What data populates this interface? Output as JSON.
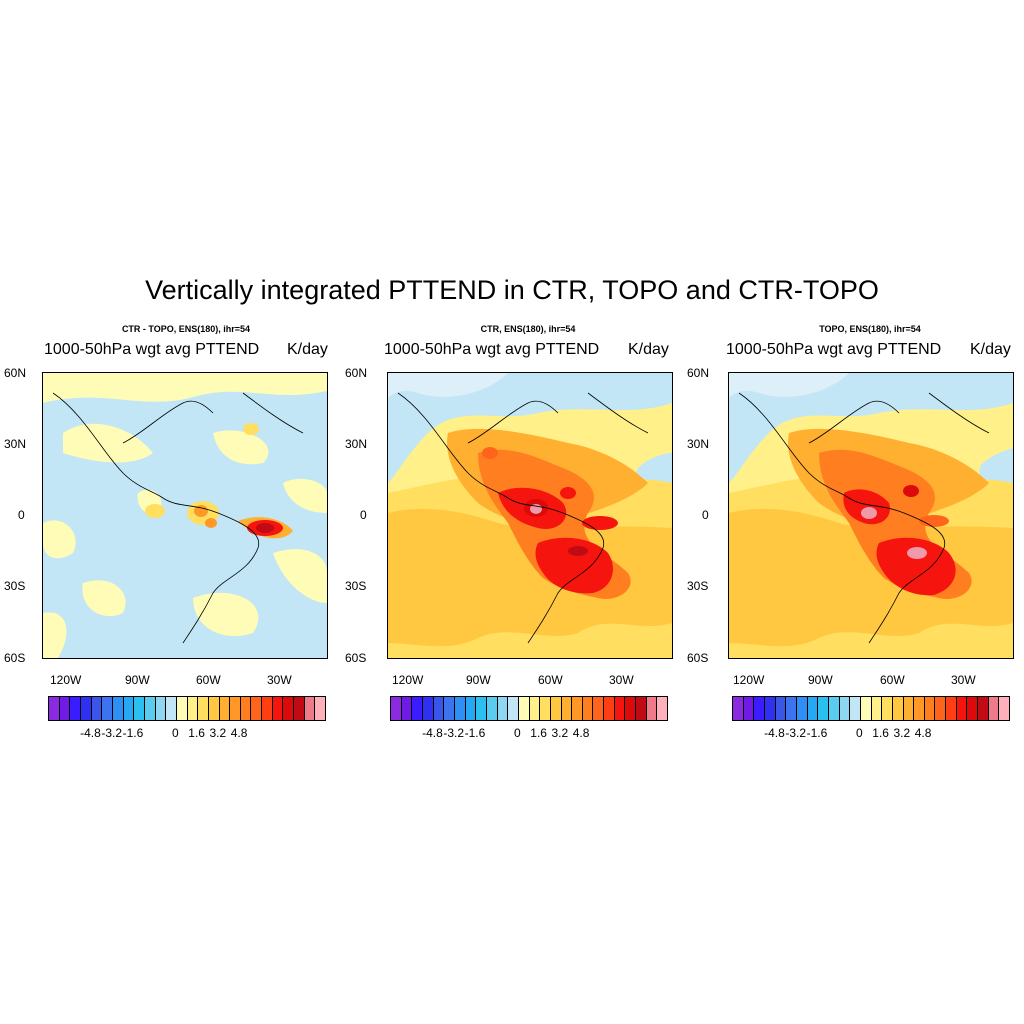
{
  "title": "Vertically integrated PTTEND in CTR, TOPO and CTR-TOPO",
  "panels": [
    {
      "subtitle": "CTR - TOPO, ENS(180), ihr=54",
      "left": "1000-50hPa wgt avg PTTEND",
      "right": "K/day"
    },
    {
      "subtitle": "CTR, ENS(180), ihr=54",
      "left": "1000-50hPa wgt avg PTTEND",
      "right": "K/day"
    },
    {
      "subtitle": "TOPO, ENS(180), ihr=54",
      "left": "1000-50hPa wgt avg PTTEND",
      "right": "K/day"
    }
  ],
  "lat_labels": [
    "60N",
    "30N",
    "0",
    "30S",
    "60S"
  ],
  "lon_labels": [
    "120W",
    "90W",
    "60W",
    "30W"
  ],
  "colorbar_labels": [
    "-4.8",
    "-3.2",
    "-1.6",
    "0",
    "1.6",
    "3.2",
    "4.8"
  ],
  "colorbar_colors": [
    "#8a2be2",
    "#6f1be5",
    "#3b1bff",
    "#2f30f0",
    "#3a56e8",
    "#3c74f0",
    "#2e8ff5",
    "#26a8f5",
    "#2cc0f0",
    "#59ccf0",
    "#8fd6f0",
    "#c2e6f5",
    "#fffcb8",
    "#fff08a",
    "#ffde60",
    "#ffc840",
    "#ffb030",
    "#ff9826",
    "#ff7f20",
    "#ff641c",
    "#ff3e14",
    "#f5140e",
    "#dc0a0a",
    "#c00a14",
    "#ee7a8a",
    "#ffb0ba"
  ],
  "map_colors": {
    "land_outline": "#000000",
    "light_blue": "#c2e6f5",
    "pale_blue": "#ddeff8",
    "light_yellow": "#fffcb8",
    "yellow": "#fff08a",
    "gold": "#ffde60",
    "orange": "#ffb030",
    "dark_orange": "#ff7f20",
    "red": "#f5140e",
    "dark_red": "#c00a14",
    "pink": "#ee9aaa"
  }
}
